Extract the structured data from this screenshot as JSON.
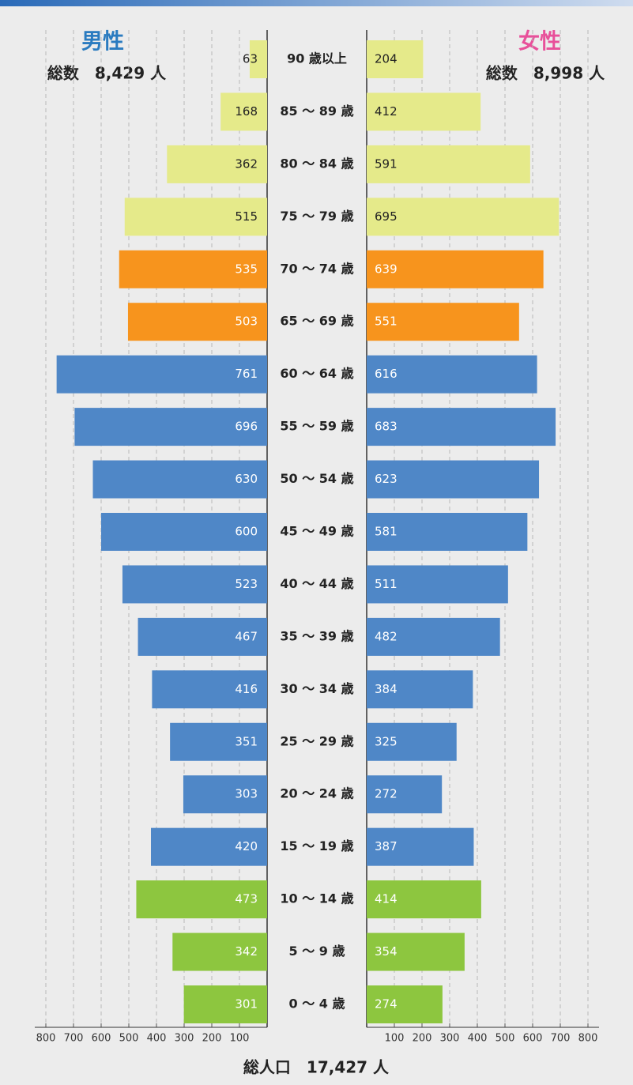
{
  "chart_data": {
    "type": "pyramid",
    "title": "総人口　17,427 人",
    "categories": [
      "90 歳以上",
      "85 ～ 89 歳",
      "80 ～ 84 歳",
      "75 ～ 79 歳",
      "70 ～ 74 歳",
      "65 ～ 69 歳",
      "60 ～ 64 歳",
      "55 ～ 59 歳",
      "50 ～ 54 歳",
      "45 ～ 49 歳",
      "40 ～ 44 歳",
      "35 ～ 39 歳",
      "30 ～ 34 歳",
      "25 ～ 29 歳",
      "20 ～ 24 歳",
      "15 ～ 19 歳",
      "10 ～ 14 歳",
      "5 ～ 9 歳",
      "0 ～ 4 歳"
    ],
    "colors": [
      "#e5ea8a",
      "#e5ea8a",
      "#e5ea8a",
      "#e5ea8a",
      "#f7941d",
      "#f7941d",
      "#4f87c7",
      "#4f87c7",
      "#4f87c7",
      "#4f87c7",
      "#4f87c7",
      "#4f87c7",
      "#4f87c7",
      "#4f87c7",
      "#4f87c7",
      "#4f87c7",
      "#8dc63f",
      "#8dc63f",
      "#8dc63f"
    ],
    "series": [
      {
        "name": "男性",
        "total": "総数　8,429 人",
        "color": "#2a7bc0",
        "values": [
          63,
          168,
          362,
          515,
          535,
          503,
          761,
          696,
          630,
          600,
          523,
          467,
          416,
          351,
          303,
          420,
          473,
          342,
          301
        ]
      },
      {
        "name": "女性",
        "total": "総数　8,998 人",
        "color": "#e8509a",
        "values": [
          204,
          412,
          591,
          695,
          639,
          551,
          616,
          683,
          623,
          581,
          511,
          482,
          384,
          325,
          272,
          387,
          414,
          354,
          274
        ]
      }
    ],
    "xlim": [
      0,
      840
    ],
    "xticks": [
      100,
      200,
      300,
      400,
      500,
      600,
      700,
      800
    ],
    "grid": true
  }
}
